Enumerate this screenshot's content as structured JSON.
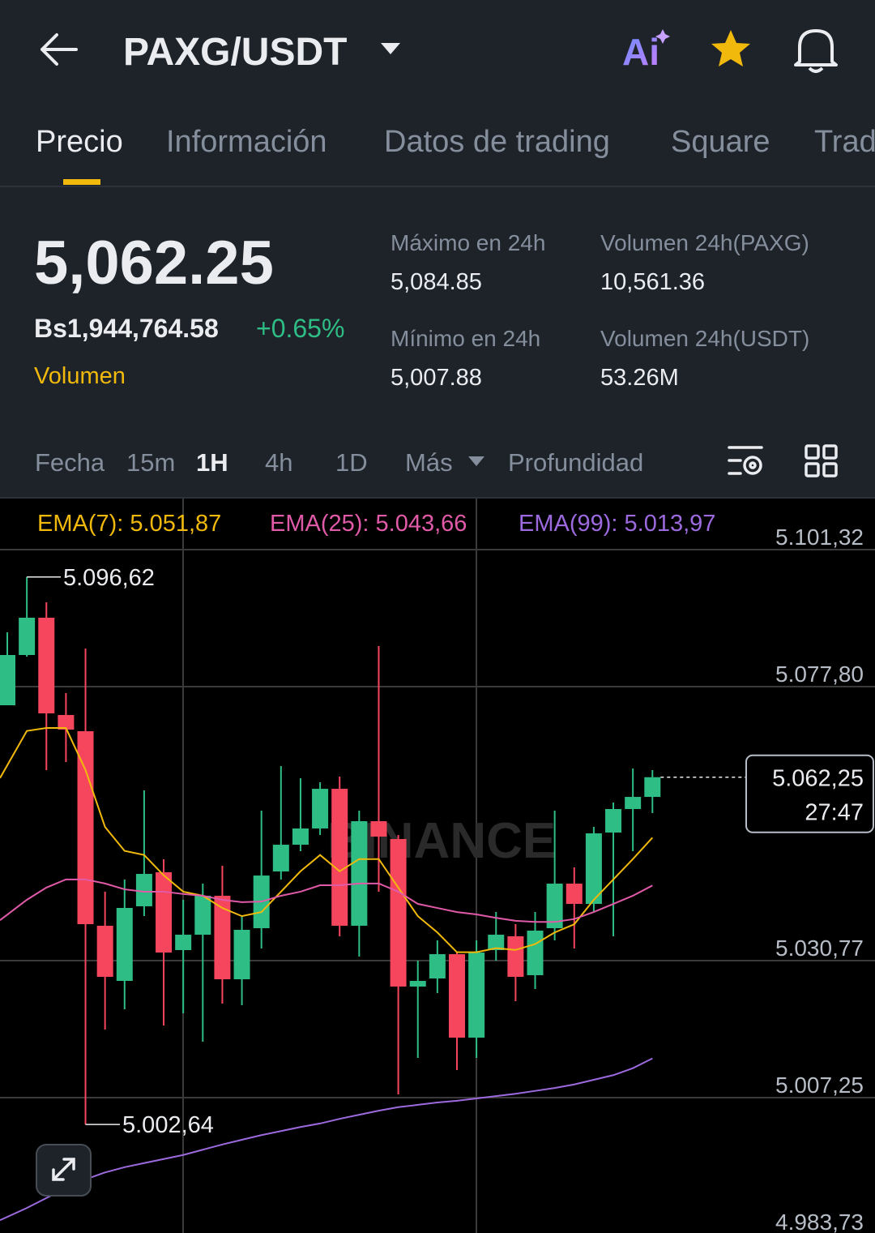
{
  "header": {
    "title": "PAXG/USDT",
    "ai": "Ai"
  },
  "tabs": [
    "Precio",
    "Información",
    "Datos de trading",
    "Square",
    "Trad"
  ],
  "ticker": {
    "price": "5,062.25",
    "fiat": "Bs1,944,764.58",
    "change": "+0.65%",
    "volume_link": "Volumen"
  },
  "stats": [
    {
      "label": "Máximo en 24h",
      "value": "5,084.85"
    },
    {
      "label": "Volumen 24h(PAXG)",
      "value": "10,561.36"
    },
    {
      "label": "Mínimo en 24h",
      "value": "5,007.88"
    },
    {
      "label": "Volumen 24h(USDT)",
      "value": "53.26M"
    }
  ],
  "intervals": [
    "Fecha",
    "15m",
    "1H",
    "4h",
    "1D",
    "Más",
    "Profundidad"
  ],
  "chart_data": {
    "type": "candlestick",
    "watermark": "BINANCE",
    "up_color": "#2ebd85",
    "down_color": "#f6465d",
    "ylim": [
      4984.0,
      5110.09
    ],
    "yticks": [
      {
        "value": 5101.32,
        "label": "5.101,32"
      },
      {
        "value": 5077.8,
        "label": "5.077,80"
      },
      {
        "value": 5030.77,
        "label": "5.030,77"
      },
      {
        "value": 5007.25,
        "label": "5.007,25"
      },
      {
        "value": 4983.73,
        "label": "4.983,73"
      }
    ],
    "grid": true,
    "open": [
      5074.6,
      5083.23,
      5089.63,
      5072.93,
      5070.15,
      5036.75,
      5027.28,
      5040.09,
      5045.93,
      5032.57,
      5035.21,
      5041.89,
      5027.56,
      5036.33,
      5046.07,
      5050.66,
      5053.45,
      5060.26,
      5036.75,
      5054.7,
      5051.64,
      5026.31,
      5027.7,
      5031.87,
      5017.54,
      5032.57,
      5034.94,
      5028.26,
      5036.33,
      5043.98,
      5040.5,
      5052.75,
      5056.79,
      5058.87
    ],
    "high": [
      5087.12,
      5096.62,
      5092.27,
      5076.69,
      5084.34,
      5042.59,
      5044.68,
      5059.99,
      5048.16,
      5041.2,
      5043.98,
      5047.04,
      5038.42,
      5056.51,
      5064.16,
      5062.07,
      5061.38,
      5062.35,
      5056.51,
      5084.76,
      5052.33,
      5030.76,
      5034.24,
      5032.15,
      5034.24,
      5039.11,
      5037.02,
      5039.11,
      5056.51,
      5046.77,
      5053.72,
      5057.9,
      5063.74,
      5063.47
    ],
    "low": [
      5074.6,
      5082.95,
      5063.47,
      5064.86,
      5002.64,
      5018.93,
      5022.41,
      5038.42,
      5019.63,
      5021.71,
      5016.84,
      5023.38,
      5023.11,
      5032.85,
      5044.68,
      5049.55,
      5052.33,
      5034.94,
      5031.46,
      5042.59,
      5007.8,
      5014.06,
      5025.19,
      5011.97,
      5014.06,
      5030.76,
      5023.8,
      5025.89,
      5034.24,
      5032.85,
      5039.11,
      5034.94,
      5049.55,
      5056.09
    ],
    "close": [
      5083.23,
      5089.63,
      5073.21,
      5070.42,
      5037.02,
      5027.98,
      5039.81,
      5045.65,
      5032.15,
      5035.21,
      5041.89,
      5027.56,
      5036.05,
      5045.37,
      5050.66,
      5053.45,
      5060.26,
      5036.75,
      5054.7,
      5052.05,
      5026.31,
      5027.28,
      5031.87,
      5017.54,
      5032.15,
      5035.21,
      5027.98,
      5035.91,
      5043.98,
      5040.5,
      5052.61,
      5056.79,
      5058.87,
      5062.25
    ],
    "lines": [
      {
        "legend": "EMA(7): 5.051,87",
        "color": "#f0b90b",
        "values": [
          5062.1,
          5070.2,
          5070.7,
          5070.7,
          5063.5,
          5053.7,
          5049.6,
          5048.9,
          5045.4,
          5042.6,
          5041.9,
          5039.8,
          5038.4,
          5039.1,
          5042.6,
          5046.1,
          5048.9,
          5046.1,
          5048.2,
          5048.2,
          5043.3,
          5038.4,
          5035.6,
          5032.2,
          5032.2,
          5032.9,
          5032.6,
          5033.6,
          5035.6,
          5037.0,
          5041.2,
          5044.7,
          5048.2,
          5051.87
        ]
      },
      {
        "legend": "EMA(25): 5.043,66",
        "color": "#e05aa8",
        "values": [
          5037.7,
          5041.2,
          5043.3,
          5044.7,
          5044.7,
          5044.0,
          5043.0,
          5042.6,
          5042.6,
          5042.2,
          5041.9,
          5041.2,
          5040.8,
          5040.9,
          5041.9,
          5042.6,
          5043.7,
          5043.7,
          5044.0,
          5044.0,
          5042.6,
          5040.5,
          5039.8,
          5039.1,
          5038.7,
          5038.1,
          5037.6,
          5037.4,
          5037.4,
          5037.9,
          5039.1,
          5040.5,
          5041.9,
          5043.66
        ]
      },
      {
        "legend": "EMA(99): 5.013,97",
        "color": "#9c6ade",
        "values": [
          4986.2,
          4988.3,
          4990.0,
          4991.7,
          4993.2,
          4994.4,
          4995.3,
          4996.0,
          4996.7,
          4997.4,
          4998.3,
          4999.2,
          5000.0,
          5000.8,
          5001.5,
          5002.2,
          5002.8,
          5003.6,
          5004.3,
          5005.0,
          5005.6,
          5006.0,
          5006.4,
          5006.7,
          5007.1,
          5007.5,
          5007.9,
          5008.4,
          5008.9,
          5009.5,
          5010.3,
          5011.1,
          5012.3,
          5013.97
        ]
      }
    ],
    "high_marker": {
      "value": 5096.62,
      "label": "5.096,62"
    },
    "low_marker": {
      "value": 5002.64,
      "label": "5.002,64"
    },
    "last_price": {
      "value": 5062.25,
      "label": "5.062,25",
      "countdown": "27:47"
    }
  }
}
